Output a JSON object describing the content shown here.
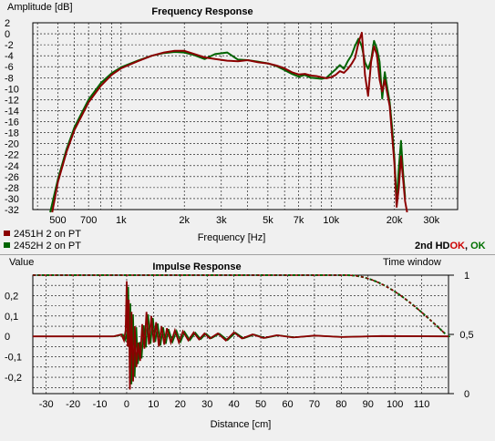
{
  "colors": {
    "series1": "#8b0000",
    "series2": "#006400",
    "background": "#f0f0f0",
    "grid": "#000000",
    "ok_red": "#cc0000",
    "ok_green": "#007000"
  },
  "status": {
    "prefix": "2nd HD",
    "ok1": "OK",
    "sep": ", ",
    "ok2": "OK"
  },
  "chart_data": [
    {
      "type": "line",
      "title": "Frequency Response",
      "ylabel": "Amplitude [dB]",
      "xlabel": "Frequency [Hz]",
      "xscale": "log",
      "xlim": [
        380,
        40000
      ],
      "ylim": [
        -32,
        2
      ],
      "grid": true,
      "legend_position": "bottom-left",
      "yticks": [
        2,
        0,
        -2,
        -4,
        -6,
        -8,
        -10,
        -12,
        -14,
        -16,
        -18,
        -20,
        -22,
        -24,
        -26,
        -28,
        -30,
        -32
      ],
      "ytick_labels": [
        "2",
        "0",
        "-2",
        "-4",
        "-6",
        "-8",
        "-10",
        "-12",
        "-14",
        "-16",
        "-18",
        "-20",
        "-22",
        "-24",
        "-26",
        "-28",
        "-30",
        "-32"
      ],
      "xticks": [
        500,
        700,
        1000,
        2000,
        3000,
        5000,
        7000,
        10000,
        20000,
        30000
      ],
      "xtick_labels": [
        "500",
        "700",
        "1k",
        "2k",
        "3k",
        "5k",
        "7k",
        "10k",
        "20k",
        "30k"
      ],
      "series": [
        {
          "name": "2451H 2 on PT",
          "x": [
            470,
            500,
            550,
            600,
            700,
            800,
            900,
            1000,
            1200,
            1400,
            1600,
            1800,
            2000,
            2200,
            2500,
            2800,
            3200,
            3600,
            4000,
            4500,
            5000,
            5500,
            6000,
            6500,
            7000,
            7500,
            8000,
            8500,
            9000,
            9500,
            10000,
            10500,
            11000,
            11500,
            12000,
            12500,
            13000,
            13500,
            14000,
            14500,
            15000,
            15500,
            16000,
            16500,
            17000,
            17500,
            18000,
            18500,
            19000,
            19500,
            20000,
            20500,
            21000,
            21500,
            22000,
            22500,
            23000
          ],
          "y": [
            -32.5,
            -27,
            -21.5,
            -17.5,
            -12.5,
            -9.5,
            -7.5,
            -6.3,
            -5,
            -4,
            -3.4,
            -3.1,
            -3.1,
            -3.6,
            -4.3,
            -4.6,
            -4.9,
            -5,
            -4.8,
            -5.2,
            -5.4,
            -5.8,
            -6.3,
            -7,
            -7.4,
            -7.3,
            -7.6,
            -7.7,
            -7.9,
            -8.1,
            -7.9,
            -7.5,
            -6.8,
            -7.1,
            -6.4,
            -5.5,
            -4.4,
            -1.6,
            0.2,
            -7.5,
            -11.3,
            -5.1,
            -2.3,
            -3.8,
            -8.3,
            -10.5,
            -8.4,
            -10.8,
            -13.2,
            -18.5,
            -23.5,
            -31.5,
            -28,
            -22.3,
            -26.5,
            -30.5,
            -32.5
          ]
        },
        {
          "name": "2452H 2 on PT",
          "x": [
            460,
            500,
            550,
            600,
            700,
            800,
            900,
            1000,
            1200,
            1400,
            1600,
            1800,
            2000,
            2200,
            2500,
            2800,
            3200,
            3600,
            4000,
            4500,
            5000,
            5500,
            6000,
            6500,
            7000,
            7500,
            8000,
            8500,
            9000,
            9500,
            10000,
            10500,
            11000,
            11500,
            12000,
            12500,
            13000,
            13500,
            14000,
            14500,
            15000,
            15500,
            16000,
            16500,
            17000,
            17500,
            18000,
            18500,
            19000,
            19500,
            20000,
            20500,
            21000,
            21500,
            22000,
            22500
          ],
          "y": [
            -32.5,
            -26.5,
            -21,
            -17,
            -12,
            -9,
            -7.2,
            -6.1,
            -4.9,
            -4,
            -3.5,
            -3.3,
            -3.4,
            -3.8,
            -4.6,
            -3.7,
            -3.4,
            -4.7,
            -4.8,
            -5.1,
            -5.4,
            -5.9,
            -6.6,
            -7.3,
            -7.8,
            -7.5,
            -8,
            -8.1,
            -8.2,
            -8,
            -7.2,
            -6.5,
            -5.7,
            -6.4,
            -5,
            -3.9,
            -2.2,
            -0.9,
            -2.3,
            -5.2,
            -6.4,
            -4.8,
            -1.3,
            -2.7,
            -5.1,
            -11.8,
            -7,
            -9.8,
            -12.5,
            -17,
            -22.5,
            -30.5,
            -24.5,
            -19.5,
            -25.3,
            -29.8
          ]
        }
      ]
    },
    {
      "type": "line",
      "title": "Impulse Response",
      "ylabel": "Value",
      "xlabel": "Distance [cm]",
      "y2label": "Time window",
      "xlim": [
        -35,
        120
      ],
      "ylim": [
        -0.28,
        0.3
      ],
      "y2lim": [
        0,
        1
      ],
      "grid": true,
      "xticks": [
        -30,
        -20,
        -10,
        0,
        10,
        20,
        30,
        40,
        50,
        60,
        70,
        80,
        90,
        100,
        110
      ],
      "xtick_labels": [
        "-30",
        "-20",
        "-10",
        "0",
        "10",
        "20",
        "30",
        "40",
        "50",
        "60",
        "70",
        "80",
        "90",
        "100",
        "110"
      ],
      "yticks": [
        0.2,
        0.1,
        0,
        -0.1,
        -0.2
      ],
      "ytick_labels": [
        "0,2",
        "0,1",
        "0",
        "-0,1",
        "-0,2"
      ],
      "y2ticks": [
        1,
        0.5,
        0
      ],
      "y2tick_labels": [
        "1",
        "0,5",
        "0"
      ],
      "impulse_peaks": [
        {
          "x": -35,
          "y": 0
        },
        {
          "x": -5,
          "y": 0
        },
        {
          "x": -2,
          "y": 0.01
        },
        {
          "x": -1,
          "y": -0.02
        },
        {
          "x": -0.4,
          "y": 0.03
        },
        {
          "x": 0,
          "y": 0.27
        },
        {
          "x": 0.4,
          "y": -0.05
        },
        {
          "x": 0.8,
          "y": 0.18
        },
        {
          "x": 1.2,
          "y": -0.26
        },
        {
          "x": 1.8,
          "y": 0.12
        },
        {
          "x": 2.4,
          "y": -0.22
        },
        {
          "x": 3,
          "y": 0.05
        },
        {
          "x": 3.6,
          "y": -0.15
        },
        {
          "x": 4.3,
          "y": -0.03
        },
        {
          "x": 5,
          "y": -0.12
        },
        {
          "x": 5.8,
          "y": 0.06
        },
        {
          "x": 6.6,
          "y": -0.06
        },
        {
          "x": 7.4,
          "y": 0.12
        },
        {
          "x": 8.3,
          "y": -0.04
        },
        {
          "x": 9.2,
          "y": 0.1
        },
        {
          "x": 10.1,
          "y": -0.03
        },
        {
          "x": 11,
          "y": 0.07
        },
        {
          "x": 12,
          "y": -0.05
        },
        {
          "x": 13,
          "y": 0.05
        },
        {
          "x": 14,
          "y": -0.04
        },
        {
          "x": 15,
          "y": 0.04
        },
        {
          "x": 16.5,
          "y": -0.03
        },
        {
          "x": 18,
          "y": 0.03
        },
        {
          "x": 19.5,
          "y": -0.03
        },
        {
          "x": 21,
          "y": 0.025
        },
        {
          "x": 23,
          "y": -0.02
        },
        {
          "x": 25,
          "y": 0.02
        },
        {
          "x": 27,
          "y": -0.015
        },
        {
          "x": 29,
          "y": 0.015
        },
        {
          "x": 31,
          "y": -0.01
        },
        {
          "x": 34,
          "y": 0.015
        },
        {
          "x": 37,
          "y": -0.02
        },
        {
          "x": 40,
          "y": 0.02
        },
        {
          "x": 43,
          "y": -0.01
        },
        {
          "x": 47,
          "y": 0.01
        },
        {
          "x": 51,
          "y": -0.008
        },
        {
          "x": 56,
          "y": 0.006
        },
        {
          "x": 62,
          "y": -0.005
        },
        {
          "x": 70,
          "y": 0.004
        },
        {
          "x": 80,
          "y": -0.003
        },
        {
          "x": 95,
          "y": 0.002
        },
        {
          "x": 120,
          "y": 0
        }
      ],
      "time_window": {
        "flat_until": 82,
        "end": 119,
        "end_value": 0.5
      }
    }
  ]
}
